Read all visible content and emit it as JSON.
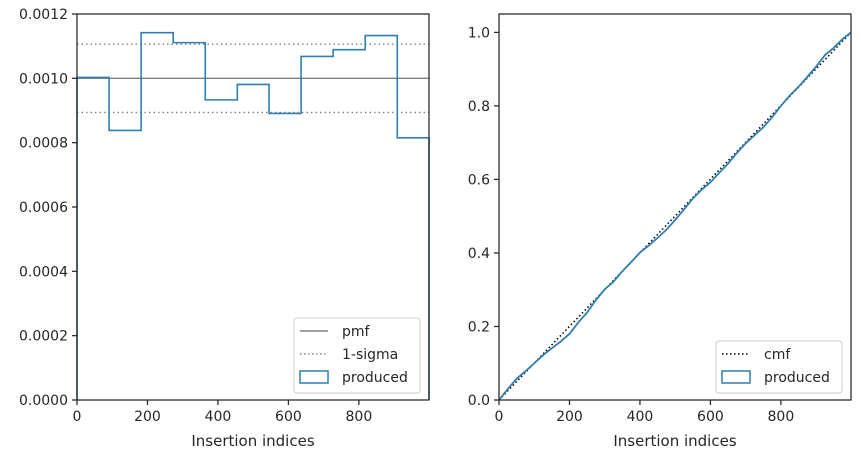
{
  "chart_data": [
    {
      "type": "line",
      "xlabel": "Insertion indices",
      "ylabel": "",
      "xlim": [
        0,
        999
      ],
      "ylim": [
        0,
        0.0012
      ],
      "xticks": [
        0,
        200,
        400,
        600,
        800
      ],
      "xtick_labels": [
        "0",
        "200",
        "400",
        "600",
        "800"
      ],
      "yticks": [
        0,
        0.0002,
        0.0004,
        0.0006,
        0.0008,
        0.001,
        0.0012
      ],
      "ytick_labels": [
        "0.0000",
        "0.0002",
        "0.0004",
        "0.0006",
        "0.0008",
        "0.0010",
        "0.0012"
      ],
      "grid": false,
      "legend_position": "lower-right",
      "hlines": [
        {
          "name": "pmf",
          "y": 0.001,
          "style": "solid",
          "color": "#808080"
        },
        {
          "name": "1-sigma",
          "y": 0.001106,
          "style": "dotted",
          "color": "#808080"
        },
        {
          "name": "1-sigma",
          "y": 0.000894,
          "style": "dotted",
          "color": "#808080"
        }
      ],
      "series": [
        {
          "name": "produced",
          "kind": "step-histogram",
          "color": "#2f7fb0",
          "bin_edges": [
            0,
            91,
            182,
            273,
            364,
            455,
            545,
            636,
            727,
            818,
            909,
            999
          ],
          "values": [
            0.001003,
            0.000838,
            0.001142,
            0.001111,
            0.000933,
            0.000981,
            0.000891,
            0.001068,
            0.001089,
            0.001133,
            0.000815
          ]
        }
      ],
      "legend": [
        {
          "label": "pmf",
          "style": "solid",
          "color": "#808080"
        },
        {
          "label": "1-sigma",
          "style": "dotted",
          "color": "#808080"
        },
        {
          "label": "produced",
          "style": "patch",
          "color": "#2f7fb0"
        }
      ]
    },
    {
      "type": "line",
      "xlabel": "Insertion indices",
      "ylabel": "",
      "xlim": [
        0,
        999
      ],
      "ylim": [
        0,
        1.05
      ],
      "xticks": [
        0,
        200,
        400,
        600,
        800
      ],
      "xtick_labels": [
        "0",
        "200",
        "400",
        "600",
        "800"
      ],
      "yticks": [
        0,
        0.2,
        0.4,
        0.6,
        0.8,
        1.0
      ],
      "ytick_labels": [
        "0.0",
        "0.2",
        "0.4",
        "0.6",
        "0.8",
        "1.0"
      ],
      "grid": false,
      "legend_position": "lower-right",
      "series": [
        {
          "name": "cmf",
          "style": "dotted",
          "color": "#000000",
          "x": [
            0,
            999
          ],
          "y": [
            0,
            1.0
          ]
        },
        {
          "name": "produced",
          "style": "solid",
          "color": "#2f7fb0",
          "x": [
            0,
            25,
            50,
            75,
            100,
            125,
            150,
            175,
            200,
            225,
            250,
            275,
            300,
            325,
            350,
            375,
            400,
            425,
            450,
            475,
            500,
            525,
            550,
            575,
            600,
            625,
            650,
            675,
            700,
            725,
            750,
            775,
            800,
            825,
            850,
            875,
            900,
            925,
            950,
            975,
            999
          ],
          "y": [
            0,
            0.03,
            0.058,
            0.078,
            0.1,
            0.122,
            0.141,
            0.159,
            0.18,
            0.211,
            0.238,
            0.272,
            0.301,
            0.322,
            0.35,
            0.375,
            0.401,
            0.42,
            0.441,
            0.463,
            0.49,
            0.518,
            0.548,
            0.572,
            0.592,
            0.618,
            0.643,
            0.672,
            0.698,
            0.72,
            0.742,
            0.769,
            0.8,
            0.828,
            0.852,
            0.879,
            0.907,
            0.938,
            0.958,
            0.982,
            1.0
          ]
        }
      ],
      "legend": [
        {
          "label": "cmf",
          "style": "dotted",
          "color": "#000000"
        },
        {
          "label": "produced",
          "style": "patch",
          "color": "#2f7fb0"
        }
      ]
    }
  ]
}
